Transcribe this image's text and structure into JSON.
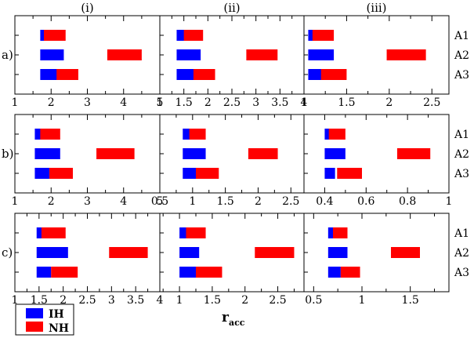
{
  "figure": {
    "xlabel_main": "r",
    "xlabel_sub": "acc",
    "column_labels": [
      "(i)",
      "(ii)",
      "(iii)"
    ],
    "row_labels": [
      "a)",
      "b)",
      "c)"
    ],
    "category_labels": [
      "A1",
      "A2",
      "A3"
    ]
  },
  "legend": [
    {
      "label": "IH",
      "color": "#0000ff"
    },
    {
      "label": "NH",
      "color": "#ff0000"
    }
  ],
  "chart_data": {
    "type": "bar",
    "orientation": "horizontal-range",
    "categories": [
      "A1",
      "A2",
      "A3"
    ],
    "series_names": [
      "IH",
      "NH"
    ],
    "series_colors": {
      "IH": "#0000ff",
      "NH": "#ff0000"
    },
    "panels": [
      {
        "row": "a)",
        "column": "(i)",
        "xlim": [
          1,
          5
        ],
        "xticks": [
          1,
          2,
          3,
          4,
          5
        ],
        "IH": [
          [
            1.7,
            2.3
          ],
          [
            1.7,
            2.35
          ],
          [
            1.7,
            2.2
          ]
        ],
        "NH": [
          [
            1.8,
            2.4
          ],
          [
            3.55,
            4.5
          ],
          [
            2.15,
            2.75
          ]
        ]
      },
      {
        "row": "a)",
        "column": "(ii)",
        "xlim": [
          1,
          4
        ],
        "xticks": [
          1,
          1.5,
          2,
          2.5,
          3,
          3.5,
          4
        ],
        "IH": [
          [
            1.35,
            1.8
          ],
          [
            1.35,
            1.85
          ],
          [
            1.35,
            1.8
          ]
        ],
        "NH": [
          [
            1.5,
            1.9
          ],
          [
            2.8,
            3.45
          ],
          [
            1.7,
            2.15
          ]
        ]
      },
      {
        "row": "a)",
        "column": "(iii)",
        "xlim": [
          1,
          2.7
        ],
        "xticks": [
          1,
          1.5,
          2,
          2.5
        ],
        "IH": [
          [
            1.05,
            1.3
          ],
          [
            1.05,
            1.35
          ],
          [
            1.05,
            1.25
          ]
        ],
        "NH": [
          [
            1.1,
            1.35
          ],
          [
            1.97,
            2.43
          ],
          [
            1.2,
            1.5
          ]
        ]
      },
      {
        "row": "b)",
        "column": "(i)",
        "xlim": [
          1,
          5
        ],
        "xticks": [
          1,
          2,
          3,
          4,
          5
        ],
        "IH": [
          [
            1.55,
            2.2
          ],
          [
            1.55,
            2.25
          ],
          [
            1.55,
            1.95
          ]
        ],
        "NH": [
          [
            1.7,
            2.25
          ],
          [
            3.25,
            4.3
          ],
          [
            1.95,
            2.6
          ]
        ]
      },
      {
        "row": "b)",
        "column": "(ii)",
        "xlim": [
          0.5,
          2.7
        ],
        "xticks": [
          0.5,
          1,
          1.5,
          2,
          2.5
        ],
        "IH": [
          [
            0.85,
            1.1
          ],
          [
            0.85,
            1.2
          ],
          [
            0.85,
            1.05
          ]
        ],
        "NH": [
          [
            0.95,
            1.2
          ],
          [
            1.85,
            2.3
          ],
          [
            1.05,
            1.4
          ]
        ]
      },
      {
        "row": "b)",
        "column": "(iii)",
        "xlim": [
          0.3,
          1
        ],
        "xticks": [
          0.4,
          0.6,
          0.8,
          1
        ],
        "IH": [
          [
            0.4,
            0.48
          ],
          [
            0.4,
            0.5
          ],
          [
            0.4,
            0.45
          ]
        ],
        "NH": [
          [
            0.42,
            0.5
          ],
          [
            0.75,
            0.91
          ],
          [
            0.46,
            0.58
          ]
        ]
      },
      {
        "row": "c)",
        "column": "(i)",
        "xlim": [
          1,
          4
        ],
        "xticks": [
          1,
          1.5,
          2,
          2.5,
          3,
          3.5,
          4
        ],
        "IH": [
          [
            1.45,
            1.9
          ],
          [
            1.45,
            2.1
          ],
          [
            1.45,
            1.75
          ]
        ],
        "NH": [
          [
            1.55,
            2.05
          ],
          [
            2.95,
            3.75
          ],
          [
            1.75,
            2.3
          ]
        ]
      },
      {
        "row": "c)",
        "column": "(ii)",
        "xlim": [
          0.7,
          2.9
        ],
        "xticks": [
          1,
          1.5,
          2,
          2.5
        ],
        "IH": [
          [
            1.0,
            1.25
          ],
          [
            1.0,
            1.3
          ],
          [
            1.0,
            1.25
          ]
        ],
        "NH": [
          [
            1.1,
            1.4
          ],
          [
            2.15,
            2.75
          ],
          [
            1.25,
            1.65
          ]
        ]
      },
      {
        "row": "c)",
        "column": "(iii)",
        "xlim": [
          0.4,
          1.9
        ],
        "xticks": [
          0.5,
          1,
          1.5
        ],
        "IH": [
          [
            0.65,
            0.8
          ],
          [
            0.65,
            0.85
          ],
          [
            0.65,
            0.78
          ]
        ],
        "NH": [
          [
            0.7,
            0.85
          ],
          [
            1.3,
            1.6
          ],
          [
            0.78,
            0.98
          ]
        ]
      }
    ]
  }
}
